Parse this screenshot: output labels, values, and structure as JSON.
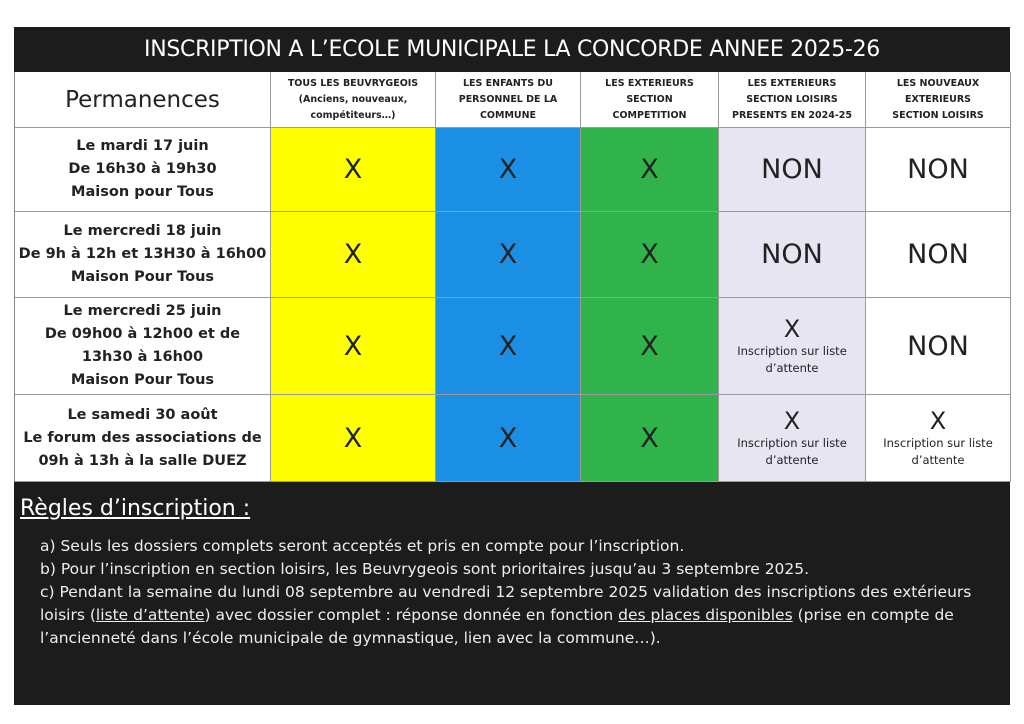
{
  "header": {
    "title": "INSCRIPTION A L’ECOLE MUNICIPALE LA CONCORDE ANNEE 2025-26"
  },
  "table": {
    "corner": "Permanences",
    "columns": [
      {
        "lines": [
          "TOUS LES BEUVRYGEOIS",
          "(Anciens, nouveaux,",
          "compétiteurs…)"
        ],
        "color": "#ffff00"
      },
      {
        "lines": [
          "LES ENFANTS DU",
          "PERSONNEL DE LA",
          "COMMUNE"
        ],
        "color": "#1b8fe4"
      },
      {
        "lines": [
          "LES EXTERIEURS",
          "SECTION",
          "COMPETITION"
        ],
        "color": "#2fb34a"
      },
      {
        "lines": [
          "LES EXTERIEURS",
          "SECTION LOISIRS",
          "PRESENTS EN 2024-25"
        ],
        "color": "#e7e5f1"
      },
      {
        "lines": [
          "LES NOUVEAUX",
          "EXTERIEURS",
          "SECTION LOISIRS"
        ],
        "color": "#ffffff"
      }
    ],
    "rows": [
      {
        "label": [
          "Le mardi 17 juin",
          "De 16h30 à 19h30",
          "Maison pour Tous"
        ],
        "cells": [
          {
            "mark": "X"
          },
          {
            "mark": "X"
          },
          {
            "mark": "X"
          },
          {
            "mark": "NON"
          },
          {
            "mark": "NON"
          }
        ]
      },
      {
        "label": [
          "Le mercredi 18 juin",
          "De 9h à 12h et 13H30 à 16h00",
          "Maison Pour Tous"
        ],
        "cells": [
          {
            "mark": "X"
          },
          {
            "mark": "X"
          },
          {
            "mark": "X"
          },
          {
            "mark": "NON"
          },
          {
            "mark": "NON"
          }
        ]
      },
      {
        "label": [
          "Le mercredi 25 juin",
          "De 09h00 à 12h00 et de",
          "13h30 à 16h00",
          "Maison Pour Tous"
        ],
        "cells": [
          {
            "mark": "X"
          },
          {
            "mark": "X"
          },
          {
            "mark": "X"
          },
          {
            "mark": "X",
            "note": [
              "Inscription sur liste",
              "d’attente"
            ]
          },
          {
            "mark": "NON"
          }
        ]
      },
      {
        "label": [
          "Le samedi 30 août",
          "Le forum des associations de",
          "09h à 13h à la salle DUEZ"
        ],
        "cells": [
          {
            "mark": "X"
          },
          {
            "mark": "X"
          },
          {
            "mark": "X"
          },
          {
            "mark": "X",
            "note": [
              "Inscription sur liste",
              "d’attente"
            ]
          },
          {
            "mark": "X",
            "note": [
              "Inscription sur liste",
              "d’attente"
            ]
          }
        ]
      }
    ]
  },
  "rules": {
    "title": "Règles d’inscription :",
    "items": [
      [
        {
          "text": "a) Seuls les dossiers complets seront acceptés et pris en compte pour l’inscription.",
          "underline": false
        }
      ],
      [
        {
          "text": "b) Pour l’inscription en section loisirs, les Beuvrygeois sont prioritaires jusqu’au 3 septembre 2025.",
          "underline": false
        }
      ],
      [
        {
          "text": "c) Pendant la semaine du lundi 08 septembre au vendredi 12 septembre 2025 validation des inscriptions des extérieurs loisirs (",
          "underline": false
        },
        {
          "text": "liste d’attente",
          "underline": true
        },
        {
          "text": ") avec dossier complet : réponse donnée en fonction ",
          "underline": false
        },
        {
          "text": "des places disponibles",
          "underline": true
        },
        {
          "text": " (prise en compte de l’ancienneté dans l’école municipale de gymnastique, lien avec la commune…).",
          "underline": false
        }
      ]
    ]
  }
}
